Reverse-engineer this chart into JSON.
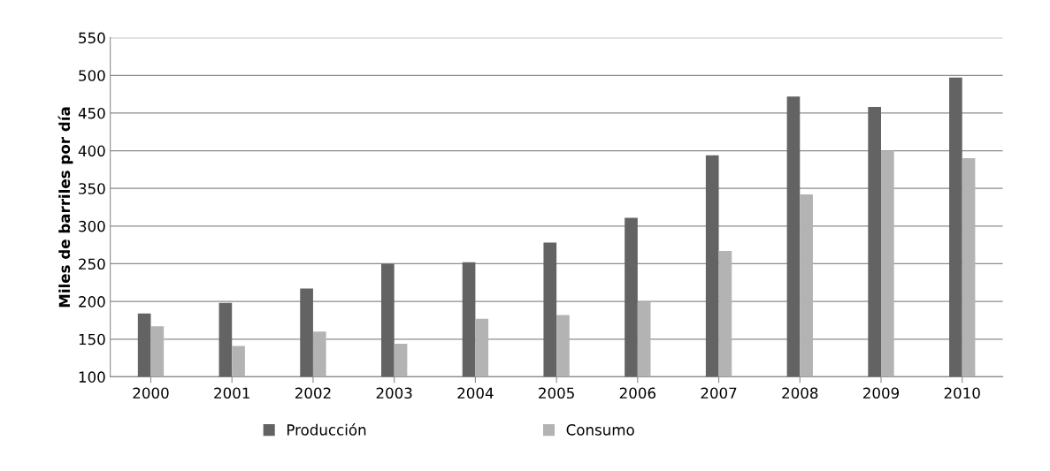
{
  "chart_data": {
    "type": "bar",
    "ylabel": "Miles de barriles por día",
    "categories": [
      "2000",
      "2001",
      "2002",
      "2003",
      "2004",
      "2005",
      "2006",
      "2007",
      "2008",
      "2009",
      "2010"
    ],
    "series": [
      {
        "name": "Producción",
        "color": "#636363",
        "values": [
          184,
          198,
          217,
          250,
          252,
          278,
          311,
          394,
          472,
          458,
          497
        ]
      },
      {
        "name": "Consumo",
        "color": "#b3b3b3",
        "values": [
          167,
          141,
          160,
          144,
          177,
          182,
          199,
          267,
          342,
          400,
          390
        ]
      }
    ],
    "ylim": [
      100,
      550
    ],
    "yticks": [
      100,
      150,
      200,
      250,
      300,
      350,
      400,
      450,
      500,
      550
    ],
    "grid": "y",
    "legend": "bottom"
  }
}
